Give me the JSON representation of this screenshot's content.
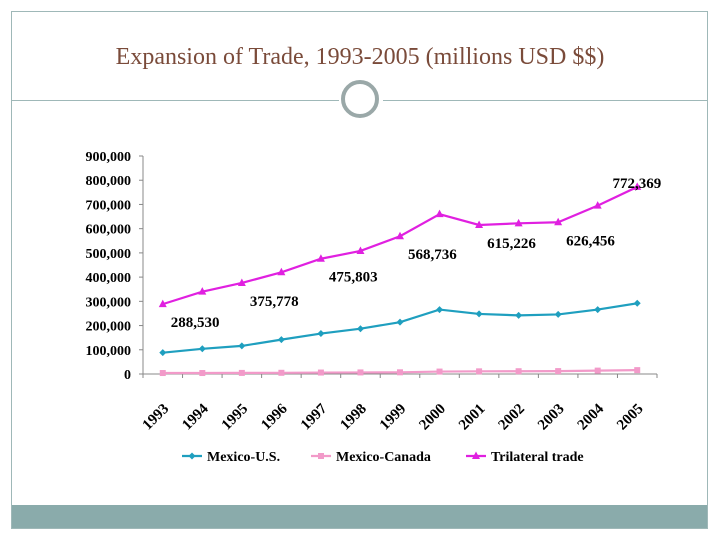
{
  "slide": {
    "title": "Expansion of Trade, 1993-2005 (millions USD $$)"
  },
  "theme": {
    "accent": "#9fb8b8",
    "footer": "#8aabab",
    "title_color": "#7a4b3a"
  },
  "chart_data": {
    "type": "line",
    "title": "Expansion of Trade, 1993-2005 (millions USD $$)",
    "xlabel": "",
    "ylabel": "",
    "categories": [
      "1993",
      "1994",
      "1995",
      "1996",
      "1997",
      "1998",
      "1999",
      "2000",
      "2001",
      "2002",
      "2003",
      "2004",
      "2005"
    ],
    "ylim": [
      0,
      900000
    ],
    "yticks": [
      0,
      100000,
      200000,
      300000,
      400000,
      500000,
      600000,
      700000,
      800000,
      900000
    ],
    "ytick_labels": [
      "0",
      "100,000",
      "200,000",
      "300,000",
      "400,000",
      "500,000",
      "600,000",
      "700,000",
      "800,000",
      "900,000"
    ],
    "series": [
      {
        "name": "Mexico-U.S.",
        "color": "#1f9fbf",
        "marker": "diamond",
        "values": [
          88000,
          104000,
          116000,
          142000,
          167000,
          187000,
          214000,
          266000,
          248000,
          242000,
          246000,
          266000,
          292000
        ]
      },
      {
        "name": "Mexico-Canada",
        "color": "#f29ac9",
        "marker": "square",
        "values": [
          4000,
          4000,
          4500,
          5000,
          6000,
          6500,
          7000,
          10000,
          11000,
          11500,
          12000,
          14000,
          16000
        ]
      },
      {
        "name": "Trilateral trade",
        "color": "#e020e0",
        "marker": "triangle",
        "values": [
          288530,
          340000,
          375778,
          420000,
          475803,
          508000,
          568736,
          660000,
          615226,
          622000,
          626456,
          695000,
          772369
        ]
      }
    ],
    "data_labels": [
      {
        "series": "Trilateral trade",
        "index": 0,
        "text": "288,530"
      },
      {
        "series": "Trilateral trade",
        "index": 2,
        "text": "375,778"
      },
      {
        "series": "Trilateral trade",
        "index": 4,
        "text": "475,803"
      },
      {
        "series": "Trilateral trade",
        "index": 6,
        "text": "568,736"
      },
      {
        "series": "Trilateral trade",
        "index": 8,
        "text": "615,226"
      },
      {
        "series": "Trilateral trade",
        "index": 10,
        "text": "626,456"
      },
      {
        "series": "Trilateral trade",
        "index": 12,
        "text": "772,369"
      }
    ],
    "grid": false,
    "legend": "bottom"
  }
}
